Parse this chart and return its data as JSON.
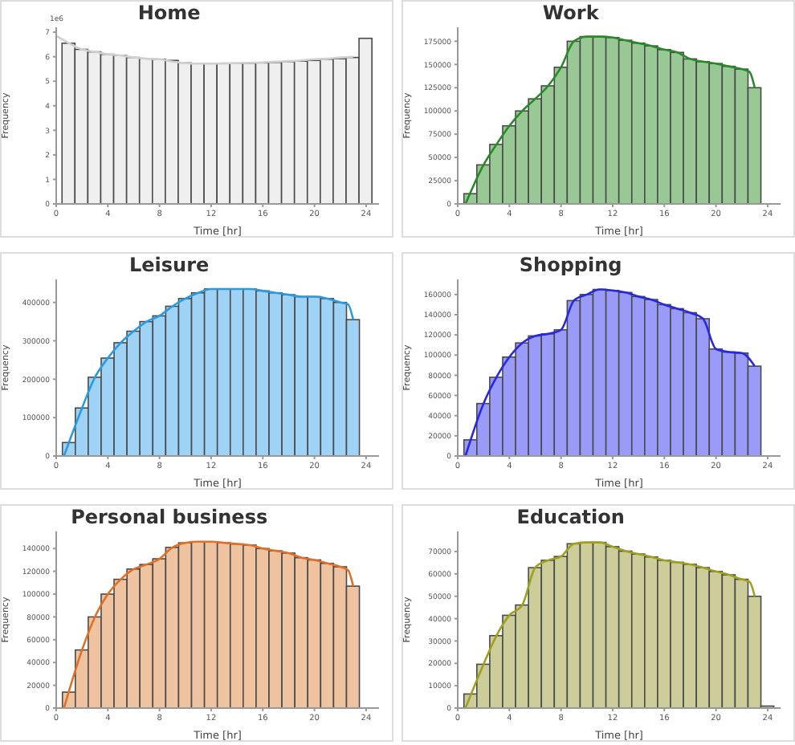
{
  "chart_data": [
    {
      "type": "histogram",
      "title": "Home",
      "xlabel": "Time [hr]",
      "ylabel": "Frequency",
      "annotations": [
        "1e6"
      ],
      "color": "#efefef",
      "bins": [
        0.5,
        1.5,
        2.5,
        3.5,
        4.5,
        5.5,
        6.5,
        7.5,
        8.5,
        9.5,
        10.5,
        11.5,
        12.5,
        13.5,
        14.5,
        15.5,
        16.5,
        17.5,
        18.5,
        19.5,
        20.5,
        21.5,
        22.5,
        23.5,
        24.5
      ],
      "values": [
        6.55,
        6.3,
        6.2,
        6.1,
        6.05,
        5.97,
        5.92,
        5.9,
        5.85,
        5.75,
        5.73,
        5.72,
        5.72,
        5.73,
        5.74,
        5.75,
        5.77,
        5.8,
        5.82,
        5.85,
        5.9,
        5.92,
        5.97,
        6.75
      ],
      "series": [
        {
          "type": "line",
          "color": "#d0d0d0",
          "x": [
            0,
            1,
            2,
            3,
            4,
            5,
            6,
            7,
            8,
            9,
            10,
            11,
            12,
            13,
            14,
            15,
            16,
            17,
            18,
            19,
            20,
            21,
            22,
            23
          ],
          "values": [
            6.85,
            6.55,
            6.3,
            6.2,
            6.1,
            6.05,
            5.97,
            5.92,
            5.9,
            5.8,
            5.74,
            5.72,
            5.72,
            5.73,
            5.74,
            5.75,
            5.77,
            5.8,
            5.82,
            5.85,
            5.9,
            5.92,
            5.97,
            6.0
          ]
        }
      ],
      "xlim": [
        0,
        25
      ],
      "xticks": [
        0,
        4,
        8,
        12,
        16,
        20,
        24
      ],
      "ylim": [
        0,
        7.2
      ],
      "yticks": [
        0,
        1,
        2,
        3,
        4,
        5,
        6,
        7
      ]
    },
    {
      "type": "histogram",
      "title": "Work",
      "xlabel": "Time [hr]",
      "ylabel": "Frequency",
      "color": "#98c995",
      "bins": [
        0.5,
        1.5,
        2.5,
        3.5,
        4.5,
        5.5,
        6.5,
        7.5,
        8.5,
        9.5,
        10.5,
        11.5,
        12.5,
        13.5,
        14.5,
        15.5,
        16.5,
        17.5,
        18.5,
        19.5,
        20.5,
        21.5,
        22.5,
        23.5,
        24.5
      ],
      "values": [
        11000,
        42000,
        64000,
        84000,
        100000,
        113000,
        127000,
        147000,
        175000,
        180000,
        180000,
        179000,
        176000,
        173000,
        170000,
        166000,
        163000,
        156000,
        153000,
        151000,
        148000,
        145000,
        125000,
        null
      ],
      "series": [
        {
          "type": "line",
          "color": "#2a8a2a",
          "x": [
            0.6,
            2,
            3,
            4,
            5,
            6,
            7,
            8,
            9,
            10,
            11,
            12,
            13,
            14,
            15,
            16,
            17,
            18,
            19,
            20,
            21,
            22,
            22.6,
            23
          ],
          "values": [
            0,
            42000,
            64000,
            84000,
            100000,
            113000,
            127000,
            147000,
            175000,
            180000,
            180000,
            179000,
            176000,
            173000,
            170000,
            166000,
            163000,
            156000,
            153000,
            151000,
            148000,
            145000,
            142000,
            125000
          ]
        }
      ],
      "xlim": [
        0,
        25
      ],
      "xticks": [
        0,
        4,
        8,
        12,
        16,
        20,
        24
      ],
      "ylim": [
        0,
        190000
      ],
      "yticks": [
        0,
        25000,
        50000,
        75000,
        100000,
        125000,
        150000,
        175000
      ]
    },
    {
      "type": "histogram",
      "title": "Leisure",
      "xlabel": "Time [hr]",
      "ylabel": "Frequency",
      "color": "#9fd3f5",
      "bins": [
        0.5,
        1.5,
        2.5,
        3.5,
        4.5,
        5.5,
        6.5,
        7.5,
        8.5,
        9.5,
        10.5,
        11.5,
        12.5,
        13.5,
        14.5,
        15.5,
        16.5,
        17.5,
        18.5,
        19.5,
        20.5,
        21.5,
        22.5,
        23.5,
        24.5
      ],
      "values": [
        35000,
        125000,
        205000,
        255000,
        295000,
        325000,
        350000,
        365000,
        390000,
        410000,
        425000,
        435000,
        435000,
        435000,
        435000,
        430000,
        425000,
        420000,
        415000,
        415000,
        410000,
        400000,
        355000,
        0
      ],
      "series": [
        {
          "type": "line",
          "color": "#2a9be0",
          "x": [
            0.6,
            2,
            3,
            4,
            5,
            6,
            7,
            8,
            9,
            10,
            11,
            12,
            13,
            14,
            15,
            16,
            17,
            18,
            19,
            20,
            21,
            22,
            22.6,
            23
          ],
          "values": [
            0,
            125000,
            205000,
            255000,
            295000,
            325000,
            350000,
            365000,
            390000,
            410000,
            425000,
            435000,
            435000,
            435000,
            435000,
            430000,
            425000,
            420000,
            415000,
            415000,
            410000,
            400000,
            395000,
            355000
          ]
        }
      ],
      "xlim": [
        0,
        25
      ],
      "xticks": [
        0,
        4,
        8,
        12,
        16,
        20,
        24
      ],
      "ylim": [
        0,
        460000
      ],
      "yticks": [
        0,
        100000,
        200000,
        300000,
        400000
      ]
    },
    {
      "type": "histogram",
      "title": "Shopping",
      "xlabel": "Time [hr]",
      "ylabel": "Frequency",
      "color": "#9a9af8",
      "bins": [
        0.5,
        1.5,
        2.5,
        3.5,
        4.5,
        5.5,
        6.5,
        7.5,
        8.5,
        9.5,
        10.5,
        11.5,
        12.5,
        13.5,
        14.5,
        15.5,
        16.5,
        17.5,
        18.5,
        19.5,
        20.5,
        21.5,
        22.5,
        23.5,
        24.5
      ],
      "values": [
        16000,
        52000,
        78000,
        98000,
        112000,
        119000,
        121000,
        125000,
        154000,
        160000,
        165000,
        164000,
        162000,
        158000,
        155000,
        150000,
        146000,
        142000,
        136000,
        106000,
        103000,
        102000,
        89000,
        null
      ],
      "series": [
        {
          "type": "line",
          "color": "#2828e0",
          "x": [
            0.6,
            2,
            3,
            4,
            5,
            6,
            7,
            8,
            9,
            10,
            11,
            12,
            13,
            14,
            15,
            16,
            17,
            18,
            19,
            20,
            21,
            22,
            23
          ],
          "values": [
            0,
            52000,
            78000,
            98000,
            112000,
            119000,
            121000,
            125000,
            154000,
            160000,
            165000,
            164000,
            162000,
            158000,
            155000,
            150000,
            146000,
            142000,
            136000,
            106000,
            103000,
            102000,
            89000
          ]
        }
      ],
      "xlim": [
        0,
        25
      ],
      "xticks": [
        0,
        4,
        8,
        12,
        16,
        20,
        24
      ],
      "ylim": [
        0,
        175000
      ],
      "yticks": [
        0,
        20000,
        40000,
        60000,
        80000,
        100000,
        120000,
        140000,
        160000
      ]
    },
    {
      "type": "histogram",
      "title": "Personal business",
      "xlabel": "Time [hr]",
      "ylabel": "Frequency",
      "color": "#efc3a0",
      "bins": [
        0.5,
        1.5,
        2.5,
        3.5,
        4.5,
        5.5,
        6.5,
        7.5,
        8.5,
        9.5,
        10.5,
        11.5,
        12.5,
        13.5,
        14.5,
        15.5,
        16.5,
        17.5,
        18.5,
        19.5,
        20.5,
        21.5,
        22.5,
        23.5,
        24.5
      ],
      "values": [
        14000,
        51000,
        80000,
        100000,
        113000,
        122000,
        126000,
        131000,
        141000,
        145000,
        146000,
        146000,
        145000,
        144000,
        143000,
        140000,
        138000,
        136000,
        132000,
        130000,
        127000,
        124000,
        107000,
        0
      ],
      "series": [
        {
          "type": "line",
          "color": "#e07028",
          "x": [
            0.6,
            2,
            3,
            4,
            5,
            6,
            7,
            8,
            9,
            10,
            11,
            12,
            13,
            14,
            15,
            16,
            17,
            18,
            19,
            20,
            21,
            22,
            22.6,
            23
          ],
          "values": [
            0,
            51000,
            80000,
            100000,
            113000,
            122000,
            126000,
            131000,
            141000,
            145000,
            146000,
            146000,
            145000,
            144000,
            143000,
            140000,
            138000,
            136000,
            132000,
            130000,
            127000,
            124000,
            121000,
            107000
          ]
        }
      ],
      "xlim": [
        0,
        25
      ],
      "xticks": [
        0,
        4,
        8,
        12,
        16,
        20,
        24
      ],
      "ylim": [
        0,
        155000
      ],
      "yticks": [
        0,
        20000,
        40000,
        60000,
        80000,
        100000,
        120000,
        140000
      ]
    },
    {
      "type": "histogram",
      "title": "Education",
      "xlabel": "Time [hr]",
      "ylabel": "Frequency",
      "color": "#cdcd9a",
      "bins": [
        0.5,
        1.5,
        2.5,
        3.5,
        4.5,
        5.5,
        6.5,
        7.5,
        8.5,
        9.5,
        10.5,
        11.5,
        12.5,
        13.5,
        14.5,
        15.5,
        16.5,
        17.5,
        18.5,
        19.5,
        20.5,
        21.5,
        22.5,
        23.5,
        24.5
      ],
      "values": [
        6300,
        19600,
        32400,
        41500,
        46100,
        62800,
        66100,
        67800,
        73500,
        74100,
        74100,
        72200,
        70200,
        68900,
        67600,
        66100,
        65200,
        64300,
        62800,
        61100,
        59600,
        57600,
        50000,
        900
      ],
      "series": [
        {
          "type": "line",
          "color": "#a0a020",
          "x": [
            0.6,
            2,
            3,
            4,
            5,
            6,
            7,
            8,
            9,
            10,
            11,
            12,
            13,
            14,
            15,
            16,
            17,
            18,
            19,
            20,
            21,
            22,
            22.6,
            23
          ],
          "values": [
            0,
            19600,
            32400,
            41500,
            46100,
            62800,
            66100,
            67800,
            73500,
            74100,
            74100,
            72200,
            70200,
            68900,
            67600,
            66100,
            65200,
            64300,
            62800,
            61100,
            59600,
            57600,
            56500,
            50000
          ]
        }
      ],
      "xlim": [
        0,
        25
      ],
      "xticks": [
        0,
        4,
        8,
        12,
        16,
        20,
        24
      ],
      "ylim": [
        0,
        79000
      ],
      "yticks": [
        0,
        10000,
        20000,
        30000,
        40000,
        50000,
        60000,
        70000
      ]
    }
  ]
}
